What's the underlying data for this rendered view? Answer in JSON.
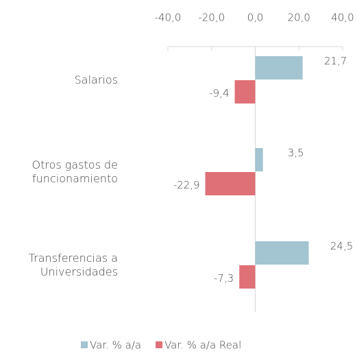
{
  "chart_data": {
    "type": "hbar",
    "categories": [
      "Salarios",
      "Otros gastos de funcionamiento",
      "Transferencias a Universidades"
    ],
    "series": [
      {
        "name": "Var.  % a/a",
        "color": "#a3c4d1",
        "values": [
          21.7,
          3.5,
          24.5
        ],
        "value_labels": [
          "21,7",
          "3,5",
          "24,5"
        ]
      },
      {
        "name": "Var. % a/a Real",
        "color": "#e07077",
        "values": [
          -9.4,
          -22.9,
          -7.3
        ],
        "value_labels": [
          "-9,4",
          "-22,9",
          "-7,3"
        ]
      }
    ],
    "xlim": [
      -40,
      40
    ],
    "xticks": [
      {
        "value": -40,
        "label": "-40,0"
      },
      {
        "value": -20,
        "label": "-20,0"
      },
      {
        "value": 0,
        "label": "0,0"
      },
      {
        "value": 20,
        "label": "20,0"
      },
      {
        "value": 40,
        "label": "40,0"
      }
    ],
    "legend": "bottom"
  }
}
